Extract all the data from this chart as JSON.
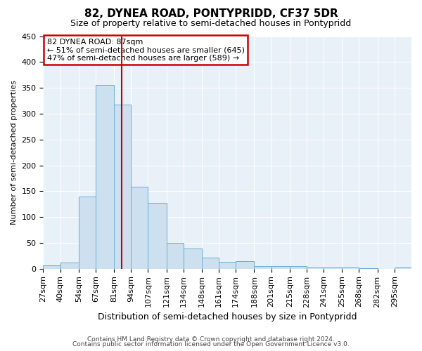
{
  "title": "82, DYNEA ROAD, PONTYPRIDD, CF37 5DR",
  "subtitle": "Size of property relative to semi-detached houses in Pontypridd",
  "xlabel": "Distribution of semi-detached houses by size in Pontypridd",
  "ylabel": "Number of semi-detached properties",
  "bar_labels": [
    "27sqm",
    "40sqm",
    "54sqm",
    "67sqm",
    "81sqm",
    "94sqm",
    "107sqm",
    "121sqm",
    "134sqm",
    "148sqm",
    "161sqm",
    "174sqm",
    "188sqm",
    "201sqm",
    "215sqm",
    "228sqm",
    "241sqm",
    "255sqm",
    "268sqm",
    "282sqm",
    "295sqm"
  ],
  "bar_values": [
    6,
    12,
    140,
    355,
    317,
    158,
    127,
    50,
    39,
    22,
    13,
    15,
    5,
    5,
    5,
    2,
    2,
    2,
    1,
    0,
    2
  ],
  "bar_color": "#cce0f0",
  "bar_edge_color": "#6aaed6",
  "property_line_x": 87,
  "bin_edges": [
    27,
    40,
    54,
    67,
    81,
    94,
    107,
    121,
    134,
    148,
    161,
    174,
    188,
    201,
    215,
    228,
    241,
    255,
    268,
    282,
    295,
    308
  ],
  "annotation_title": "82 DYNEA ROAD: 87sqm",
  "annotation_line1": "← 51% of semi-detached houses are smaller (645)",
  "annotation_line2": "47% of semi-detached houses are larger (589) →",
  "annotation_box_facecolor": "#ffffff",
  "annotation_box_edgecolor": "#cc0000",
  "red_line_color": "#cc0000",
  "ylim": [
    0,
    450
  ],
  "yticks": [
    0,
    50,
    100,
    150,
    200,
    250,
    300,
    350,
    400,
    450
  ],
  "footer_line1": "Contains HM Land Registry data © Crown copyright and database right 2024.",
  "footer_line2": "Contains public sector information licensed under the Open Government Licence v3.0.",
  "bg_color": "#ffffff",
  "plot_bg_color": "#e8f0f8",
  "grid_color": "#ffffff",
  "title_fontsize": 11,
  "subtitle_fontsize": 9,
  "xlabel_fontsize": 9,
  "ylabel_fontsize": 8,
  "tick_fontsize": 8,
  "footer_fontsize": 6.5
}
